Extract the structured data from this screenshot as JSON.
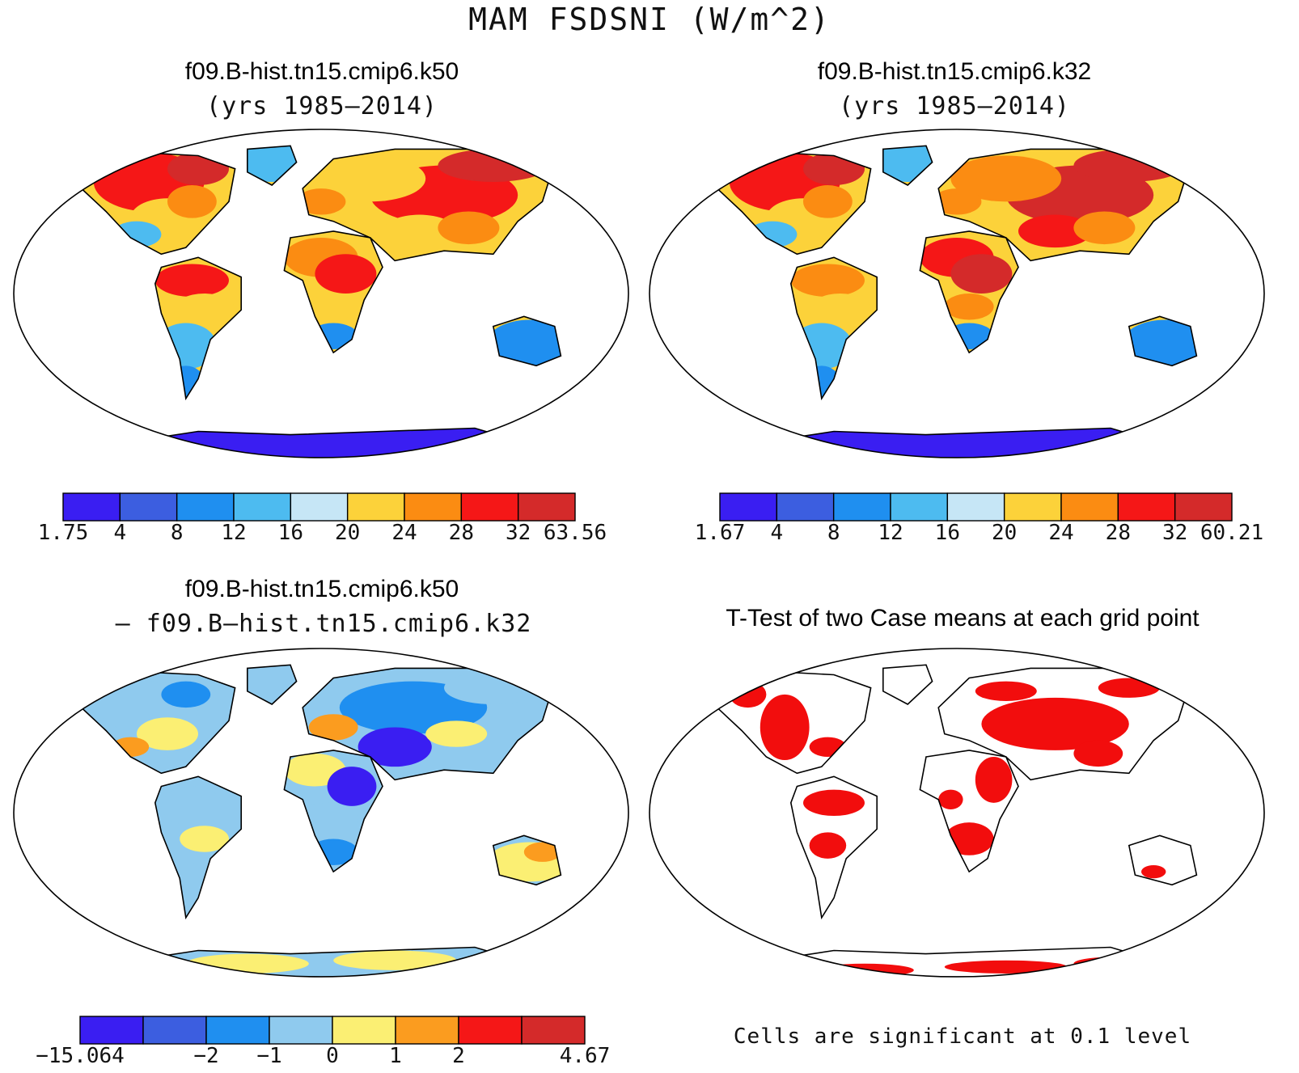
{
  "figure": {
    "title": "MAM FSDSNI (W/m^2)"
  },
  "panels": [
    {
      "id": "k50",
      "title": "f09.B-hist.tn15.cmip6.k50",
      "subtitle": "(yrs 1985–2014)",
      "colorbar": {
        "colors": [
          "#3a1ef2",
          "#3c5ee0",
          "#1f8ff0",
          "#4dbbf0",
          "#c6e6f6",
          "#fcd23a",
          "#fb8c12",
          "#f51717",
          "#d42a2a"
        ],
        "labels": [
          "1.75",
          "4",
          "8",
          "12",
          "16",
          "20",
          "24",
          "28",
          "32",
          "63.56"
        ]
      }
    },
    {
      "id": "k32",
      "title": "f09.B-hist.tn15.cmip6.k32",
      "subtitle": "(yrs 1985–2014)",
      "colorbar": {
        "colors": [
          "#3a1ef2",
          "#3c5ee0",
          "#1f8ff0",
          "#4dbbf0",
          "#c6e6f6",
          "#fcd23a",
          "#fb8c12",
          "#f51717",
          "#d42a2a"
        ],
        "labels": [
          "1.67",
          "4",
          "8",
          "12",
          "16",
          "20",
          "24",
          "28",
          "32",
          "60.21"
        ]
      }
    },
    {
      "id": "diff",
      "title": "f09.B-hist.tn15.cmip6.k50",
      "subtitle": "– f09.B–hist.tn15.cmip6.k32",
      "colorbar": {
        "colors": [
          "#3a1ef2",
          "#3c5ee0",
          "#1f8ff0",
          "#8fcaee",
          "#fbef73",
          "#fb9c1f",
          "#f51717",
          "#d42a2a"
        ],
        "labels": [
          "−15.064",
          "",
          "−2",
          "−1",
          "0",
          "1",
          "2",
          "",
          "4.67"
        ]
      }
    },
    {
      "id": "ttest",
      "title": "T-Test of two Case means at each grid point",
      "note": "Cells are significant at 0.1 level",
      "color": "#f20d0d"
    }
  ]
}
